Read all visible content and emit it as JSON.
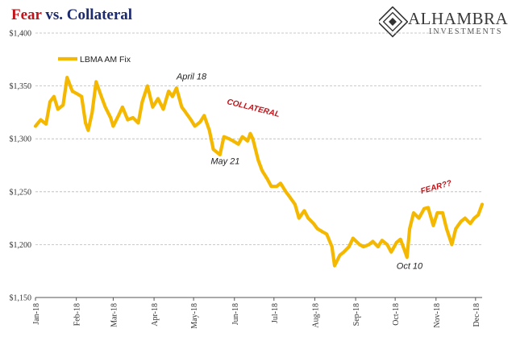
{
  "title": {
    "part1": "Fear",
    "part2": " vs. Collateral"
  },
  "logo": {
    "name": "ALHAMBRA",
    "sub": "INVESTMENTS"
  },
  "colors": {
    "series": "#f5b800",
    "grid": "#b8b8b8",
    "title_red": "#c0141a",
    "title_blue": "#1c2a6e"
  },
  "chart_data": {
    "type": "line",
    "title": "",
    "xlabel": "",
    "ylabel": "",
    "ylim": [
      1150,
      1400
    ],
    "grid": true,
    "legend": "top-left",
    "y_ticks": [
      "$1,150",
      "$1,200",
      "$1,250",
      "$1,300",
      "$1,350",
      "$1,400"
    ],
    "y_tick_values": [
      1150,
      1200,
      1250,
      1300,
      1350,
      1400
    ],
    "x_ticks": [
      "Jan-18",
      "Feb-18",
      "Mar-18",
      "Apr-18",
      "May-18",
      "Jun-18",
      "Jul-18",
      "Aug-18",
      "Sep-18",
      "Oct-18",
      "Nov-18",
      "Dec-18"
    ],
    "x_tick_dates": [
      "2018-01-01",
      "2018-02-01",
      "2018-03-01",
      "2018-04-01",
      "2018-05-01",
      "2018-06-01",
      "2018-07-01",
      "2018-08-01",
      "2018-09-01",
      "2018-10-01",
      "2018-11-01",
      "2018-12-01"
    ],
    "x_range": [
      "2018-01-01",
      "2018-12-06"
    ],
    "series": [
      {
        "name": "LBMA AM Fix",
        "points": [
          [
            "2018-01-01",
            1312
          ],
          [
            "2018-01-05",
            1318
          ],
          [
            "2018-01-09",
            1314
          ],
          [
            "2018-01-12",
            1335
          ],
          [
            "2018-01-15",
            1340
          ],
          [
            "2018-01-18",
            1328
          ],
          [
            "2018-01-22",
            1332
          ],
          [
            "2018-01-25",
            1358
          ],
          [
            "2018-01-29",
            1345
          ],
          [
            "2018-02-01",
            1343
          ],
          [
            "2018-02-05",
            1340
          ],
          [
            "2018-02-08",
            1315
          ],
          [
            "2018-02-10",
            1308
          ],
          [
            "2018-02-13",
            1325
          ],
          [
            "2018-02-16",
            1354
          ],
          [
            "2018-02-20",
            1340
          ],
          [
            "2018-02-23",
            1330
          ],
          [
            "2018-02-27",
            1320
          ],
          [
            "2018-03-01",
            1312
          ],
          [
            "2018-03-05",
            1322
          ],
          [
            "2018-03-08",
            1330
          ],
          [
            "2018-03-12",
            1318
          ],
          [
            "2018-03-16",
            1320
          ],
          [
            "2018-03-20",
            1315
          ],
          [
            "2018-03-23",
            1335
          ],
          [
            "2018-03-27",
            1350
          ],
          [
            "2018-03-31",
            1330
          ],
          [
            "2018-04-04",
            1338
          ],
          [
            "2018-04-08",
            1328
          ],
          [
            "2018-04-12",
            1345
          ],
          [
            "2018-04-15",
            1340
          ],
          [
            "2018-04-18",
            1348
          ],
          [
            "2018-04-22",
            1330
          ],
          [
            "2018-04-25",
            1325
          ],
          [
            "2018-04-29",
            1318
          ],
          [
            "2018-05-02",
            1312
          ],
          [
            "2018-05-06",
            1316
          ],
          [
            "2018-05-09",
            1322
          ],
          [
            "2018-05-13",
            1308
          ],
          [
            "2018-05-16",
            1290
          ],
          [
            "2018-05-18",
            1288
          ],
          [
            "2018-05-21",
            1285
          ],
          [
            "2018-05-24",
            1302
          ],
          [
            "2018-05-28",
            1300
          ],
          [
            "2018-05-31",
            1298
          ],
          [
            "2018-06-04",
            1295
          ],
          [
            "2018-06-07",
            1302
          ],
          [
            "2018-06-11",
            1298
          ],
          [
            "2018-06-13",
            1305
          ],
          [
            "2018-06-15",
            1300
          ],
          [
            "2018-06-19",
            1280
          ],
          [
            "2018-06-22",
            1270
          ],
          [
            "2018-06-26",
            1262
          ],
          [
            "2018-06-29",
            1255
          ],
          [
            "2018-07-03",
            1255
          ],
          [
            "2018-07-06",
            1258
          ],
          [
            "2018-07-10",
            1250
          ],
          [
            "2018-07-13",
            1245
          ],
          [
            "2018-07-17",
            1238
          ],
          [
            "2018-07-20",
            1225
          ],
          [
            "2018-07-24",
            1232
          ],
          [
            "2018-07-27",
            1225
          ],
          [
            "2018-07-31",
            1220
          ],
          [
            "2018-08-03",
            1215
          ],
          [
            "2018-08-07",
            1212
          ],
          [
            "2018-08-10",
            1210
          ],
          [
            "2018-08-14",
            1198
          ],
          [
            "2018-08-16",
            1180
          ],
          [
            "2018-08-20",
            1190
          ],
          [
            "2018-08-23",
            1193
          ],
          [
            "2018-08-27",
            1198
          ],
          [
            "2018-08-30",
            1206
          ],
          [
            "2018-09-04",
            1200
          ],
          [
            "2018-09-07",
            1198
          ],
          [
            "2018-09-11",
            1200
          ],
          [
            "2018-09-14",
            1203
          ],
          [
            "2018-09-18",
            1198
          ],
          [
            "2018-09-21",
            1204
          ],
          [
            "2018-09-25",
            1200
          ],
          [
            "2018-09-28",
            1193
          ],
          [
            "2018-10-02",
            1202
          ],
          [
            "2018-10-05",
            1205
          ],
          [
            "2018-10-08",
            1195
          ],
          [
            "2018-10-10",
            1188
          ],
          [
            "2018-10-12",
            1215
          ],
          [
            "2018-10-15",
            1230
          ],
          [
            "2018-10-19",
            1225
          ],
          [
            "2018-10-23",
            1234
          ],
          [
            "2018-10-26",
            1235
          ],
          [
            "2018-10-30",
            1218
          ],
          [
            "2018-11-02",
            1230
          ],
          [
            "2018-11-06",
            1230
          ],
          [
            "2018-11-09",
            1215
          ],
          [
            "2018-11-13",
            1200
          ],
          [
            "2018-11-16",
            1215
          ],
          [
            "2018-11-20",
            1222
          ],
          [
            "2018-11-23",
            1225
          ],
          [
            "2018-11-27",
            1220
          ],
          [
            "2018-11-30",
            1225
          ],
          [
            "2018-12-03",
            1228
          ],
          [
            "2018-12-06",
            1238
          ]
        ]
      }
    ],
    "annotations": [
      {
        "text": "April 18",
        "date": "2018-04-18",
        "value": 1356,
        "style": "normal"
      },
      {
        "text": "May 21",
        "date": "2018-05-14",
        "value": 1276,
        "style": "normal"
      },
      {
        "text": "COLLATERAL",
        "date": "2018-05-26",
        "value": 1333,
        "style": "red"
      },
      {
        "text": "FEAR??",
        "date": "2018-10-21",
        "value": 1248,
        "style": "red"
      },
      {
        "text": "Oct 10",
        "date": "2018-10-02",
        "value": 1177,
        "style": "normal"
      }
    ]
  }
}
